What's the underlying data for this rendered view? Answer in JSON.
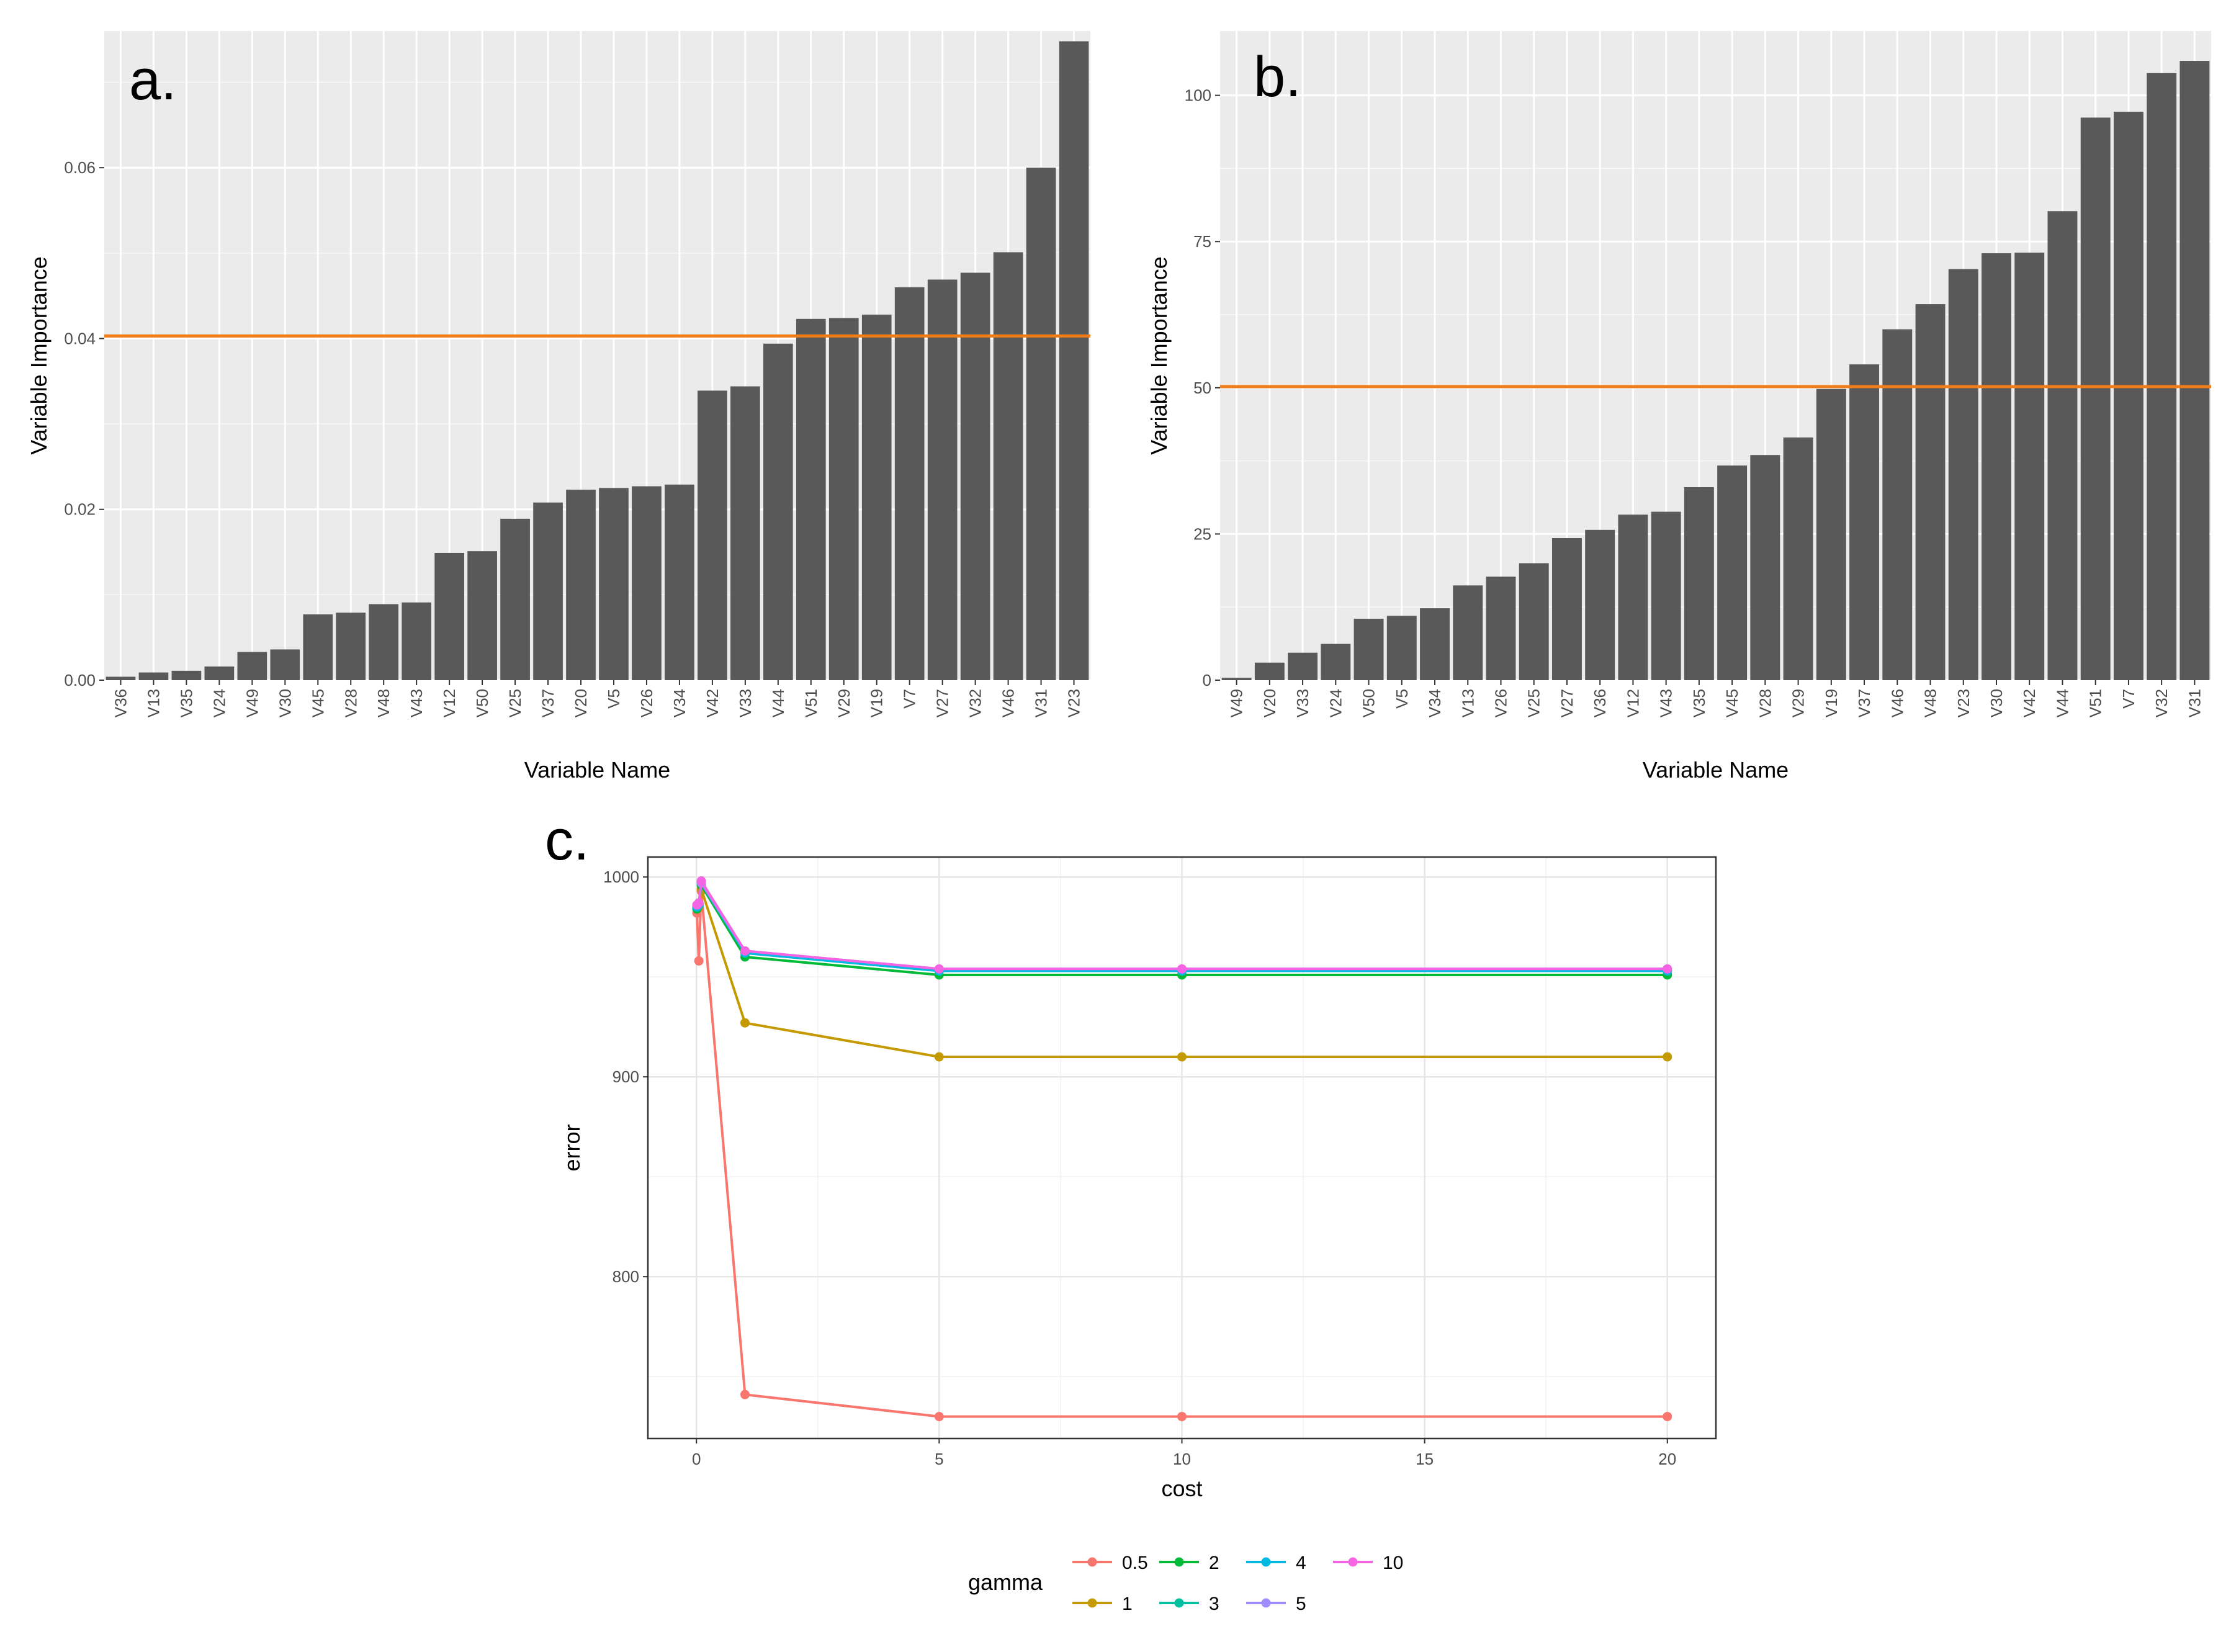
{
  "chart_data": [
    {
      "panel": "a.",
      "type": "bar",
      "xlabel": "Variable Name",
      "ylabel": "Variable Importance",
      "ylim": [
        0,
        0.076
      ],
      "yticks": [
        "0.00",
        "0.02",
        "0.04",
        "0.06"
      ],
      "ytick_values": [
        0,
        0.02,
        0.04,
        0.06
      ],
      "categories": [
        "V36",
        "V13",
        "V35",
        "V24",
        "V49",
        "V30",
        "V45",
        "V28",
        "V48",
        "V43",
        "V12",
        "V50",
        "V25",
        "V37",
        "V20",
        "V5",
        "V26",
        "V34",
        "V42",
        "V33",
        "V44",
        "V51",
        "V29",
        "V19",
        "V7",
        "V27",
        "V32",
        "V46",
        "V31",
        "V23"
      ],
      "values": [
        0.0004,
        0.0009,
        0.0011,
        0.0016,
        0.0033,
        0.0036,
        0.0077,
        0.0079,
        0.0089,
        0.0091,
        0.0149,
        0.0151,
        0.0189,
        0.0208,
        0.0223,
        0.0225,
        0.0227,
        0.0229,
        0.0339,
        0.0344,
        0.0394,
        0.0423,
        0.0424,
        0.0428,
        0.046,
        0.0469,
        0.0477,
        0.0501,
        0.06,
        0.0748
      ],
      "threshold": 0.0403,
      "bar_color": "#595959",
      "threshold_color": "#f07d1a",
      "panel_bg": "#ebebeb"
    },
    {
      "panel": "b.",
      "type": "bar",
      "xlabel": "Variable Name",
      "ylabel": "Variable Importance",
      "ylim": [
        0,
        111
      ],
      "yticks": [
        "0",
        "25",
        "50",
        "75",
        "100"
      ],
      "ytick_values": [
        0,
        25,
        50,
        75,
        100
      ],
      "categories": [
        "V49",
        "V20",
        "V33",
        "V24",
        "V50",
        "V5",
        "V34",
        "V13",
        "V26",
        "V25",
        "V27",
        "V36",
        "V12",
        "V43",
        "V35",
        "V45",
        "V28",
        "V29",
        "V19",
        "V37",
        "V46",
        "V48",
        "V23",
        "V30",
        "V42",
        "V44",
        "V51",
        "V7",
        "V32",
        "V31"
      ],
      "values": [
        0.4,
        3,
        4.7,
        6.2,
        10.5,
        11,
        12.3,
        16.2,
        17.7,
        20,
        24.3,
        25.7,
        28.3,
        28.8,
        33,
        36.7,
        38.5,
        41.5,
        49.8,
        54,
        60,
        64.3,
        70.3,
        73,
        73.1,
        80.2,
        96.2,
        97.2,
        103.8,
        105.9
      ],
      "threshold": 50.2,
      "bar_color": "#595959",
      "threshold_color": "#f07d1a",
      "panel_bg": "#ebebeb"
    },
    {
      "panel": "c.",
      "type": "line",
      "xlabel": "cost",
      "ylabel": "error",
      "xlim": [
        -1,
        21
      ],
      "ylim": [
        719,
        1010
      ],
      "xticks": [
        "0",
        "5",
        "10",
        "15",
        "20"
      ],
      "xtick_values": [
        0,
        5,
        10,
        15,
        20
      ],
      "yticks": [
        "800",
        "900",
        "1000"
      ],
      "ytick_values": [
        800,
        900,
        1000
      ],
      "x": [
        0.01,
        0.05,
        0.1,
        1,
        5,
        10,
        20
      ],
      "legend_title": "gamma",
      "series": [
        {
          "name": "0.5",
          "color": "#f8766d",
          "values": [
            982,
            958,
            993,
            741,
            730,
            730,
            730
          ]
        },
        {
          "name": "1",
          "color": "#c49a00",
          "values": [
            985,
            985,
            994,
            927,
            910,
            910,
            910
          ]
        },
        {
          "name": "2",
          "color": "#00ba38",
          "values": [
            984,
            986,
            996,
            960,
            951,
            951,
            951
          ]
        },
        {
          "name": "3",
          "color": "#00c19f",
          "values": [
            985,
            986,
            997,
            962,
            953,
            953,
            953
          ]
        },
        {
          "name": "4",
          "color": "#00b9e3",
          "values": [
            985,
            986,
            997,
            962,
            953,
            953,
            953
          ]
        },
        {
          "name": "5",
          "color": "#9f8cff",
          "values": [
            986,
            987,
            997,
            963,
            954,
            954,
            954
          ]
        },
        {
          "name": "10",
          "color": "#f564e3",
          "values": [
            986,
            987,
            998,
            963,
            954,
            954,
            954
          ]
        }
      ]
    }
  ]
}
